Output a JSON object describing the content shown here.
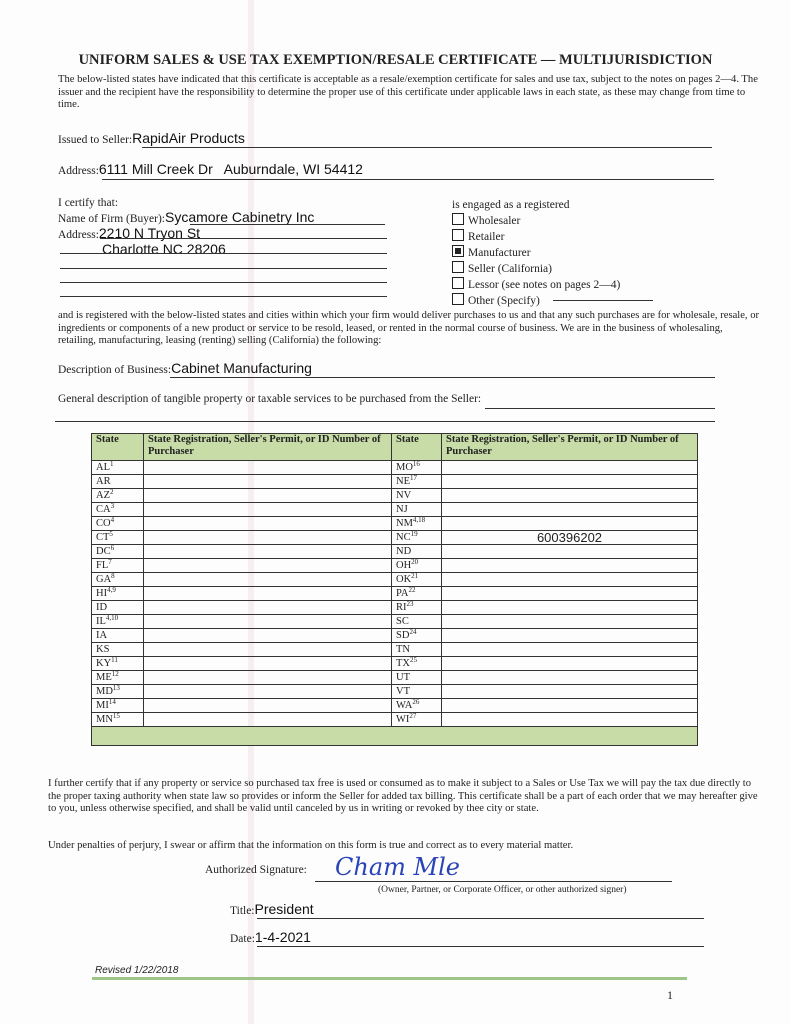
{
  "title": "UNIFORM SALES & USE TAX EXEMPTION/RESALE CERTIFICATE — MULTIJURISDICTION",
  "intro": "The below-listed states have indicated that this certificate is acceptable as a resale/exemption certificate for sales and use tax, subject to the notes on pages 2—4. The issuer and the recipient have the responsibility to determine the proper use of this certificate under applicable laws in each state, as these may change from time to time.",
  "seller": {
    "label": "Issued to Seller:",
    "value": "RapidAir Products",
    "address_label": "Address:",
    "address_value": "6111 Mill Creek Dr   Auburndale, WI 54412"
  },
  "buyer": {
    "certify": "I certify that:",
    "name_label": "Name of Firm (Buyer):",
    "name_value": "Sycamore Cabinetry Inc",
    "address_label": "Address:",
    "address_line1": "2210 N Tryon St",
    "address_line2": "Charlotte NC 28206"
  },
  "engaged": {
    "label": "is engaged as a registered",
    "options": [
      {
        "label": "Wholesaler",
        "checked": false
      },
      {
        "label": "Retailer",
        "checked": false
      },
      {
        "label": "Manufacturer",
        "checked": true
      },
      {
        "label": "Seller (California)",
        "checked": false
      },
      {
        "label": "Lessor (see notes on pages 2—4)",
        "checked": false
      },
      {
        "label": "Other (Specify)",
        "checked": false
      }
    ]
  },
  "registered_text": "and is registered with the below-listed states and cities within which your firm would deliver purchases to us and that any such purchases are for wholesale, resale, or ingredients or components of a new product or service to be resold, leased, or rented in the normal course of business. We are in the business of wholesaling, retailing, manufacturing, leasing (renting) selling (California) the following:",
  "business": {
    "label": "Description of Business:",
    "value": "Cabinet Manufacturing"
  },
  "general_label": "General description of tangible property or taxable services to be purchased from the Seller:",
  "table": {
    "headers": [
      "State",
      "State Registration, Seller's Permit, or ID Number of Purchaser",
      "State",
      "State Registration, Seller's Permit, or ID Number of Purchaser"
    ],
    "left": [
      [
        "AL",
        "1",
        ""
      ],
      [
        "AR",
        "",
        ""
      ],
      [
        "AZ",
        "2",
        ""
      ],
      [
        "CA",
        "3",
        ""
      ],
      [
        "CO",
        "4",
        ""
      ],
      [
        "CT",
        "5",
        ""
      ],
      [
        "DC",
        "6",
        ""
      ],
      [
        "FL",
        "7",
        ""
      ],
      [
        "GA",
        "8",
        ""
      ],
      [
        "HI",
        "4,9",
        ""
      ],
      [
        "ID",
        "",
        ""
      ],
      [
        "IL",
        "4,10",
        ""
      ],
      [
        "IA",
        "",
        ""
      ],
      [
        "KS",
        "",
        ""
      ],
      [
        "KY",
        "11",
        ""
      ],
      [
        "ME",
        "12",
        ""
      ],
      [
        "MD",
        "13",
        ""
      ],
      [
        "MI",
        "14",
        ""
      ],
      [
        "MN",
        "15",
        ""
      ]
    ],
    "right": [
      [
        "MO",
        "16",
        ""
      ],
      [
        "NE",
        "17",
        ""
      ],
      [
        "NV",
        "",
        ""
      ],
      [
        "NJ",
        "",
        ""
      ],
      [
        "NM",
        "4,18",
        ""
      ],
      [
        "NC",
        "19",
        "600396202"
      ],
      [
        "ND",
        "",
        ""
      ],
      [
        "OH",
        "20",
        ""
      ],
      [
        "OK",
        "21",
        ""
      ],
      [
        "PA",
        "22",
        ""
      ],
      [
        "RI",
        "23",
        ""
      ],
      [
        "SC",
        "",
        ""
      ],
      [
        "SD",
        "24",
        ""
      ],
      [
        "TN",
        "",
        ""
      ],
      [
        "TX",
        "25",
        ""
      ],
      [
        "UT",
        "",
        ""
      ],
      [
        "VT",
        "",
        ""
      ],
      [
        "WA",
        "26",
        ""
      ],
      [
        "WI",
        "27",
        ""
      ]
    ]
  },
  "further_text": "I further certify that if any property or service so purchased tax free is used or consumed as to make it subject to a Sales or Use Tax we will pay the tax due directly to the proper taxing authority when state law so provides or inform the Seller for added tax billing. This certificate shall be a part of each order that we may hereafter give to you, unless otherwise specified, and shall be valid until canceled by us in writing or revoked by thee city or state.",
  "perjury_text": "Under penalties of perjury, I swear or affirm that the information on this form is true and correct as to every material matter.",
  "signature": {
    "label": "Authorized Signature:",
    "note": "(Owner, Partner, or Corporate Officer, or other authorized signer)"
  },
  "title_field": {
    "label": "Title:",
    "value": "President"
  },
  "date_field": {
    "label": "Date:",
    "value": "1-4-2021"
  },
  "revised": "Revised 1/22/2018",
  "page_number": "1",
  "colors": {
    "table_header": "#c8dca8",
    "signature_ink": "#2a44b8"
  }
}
